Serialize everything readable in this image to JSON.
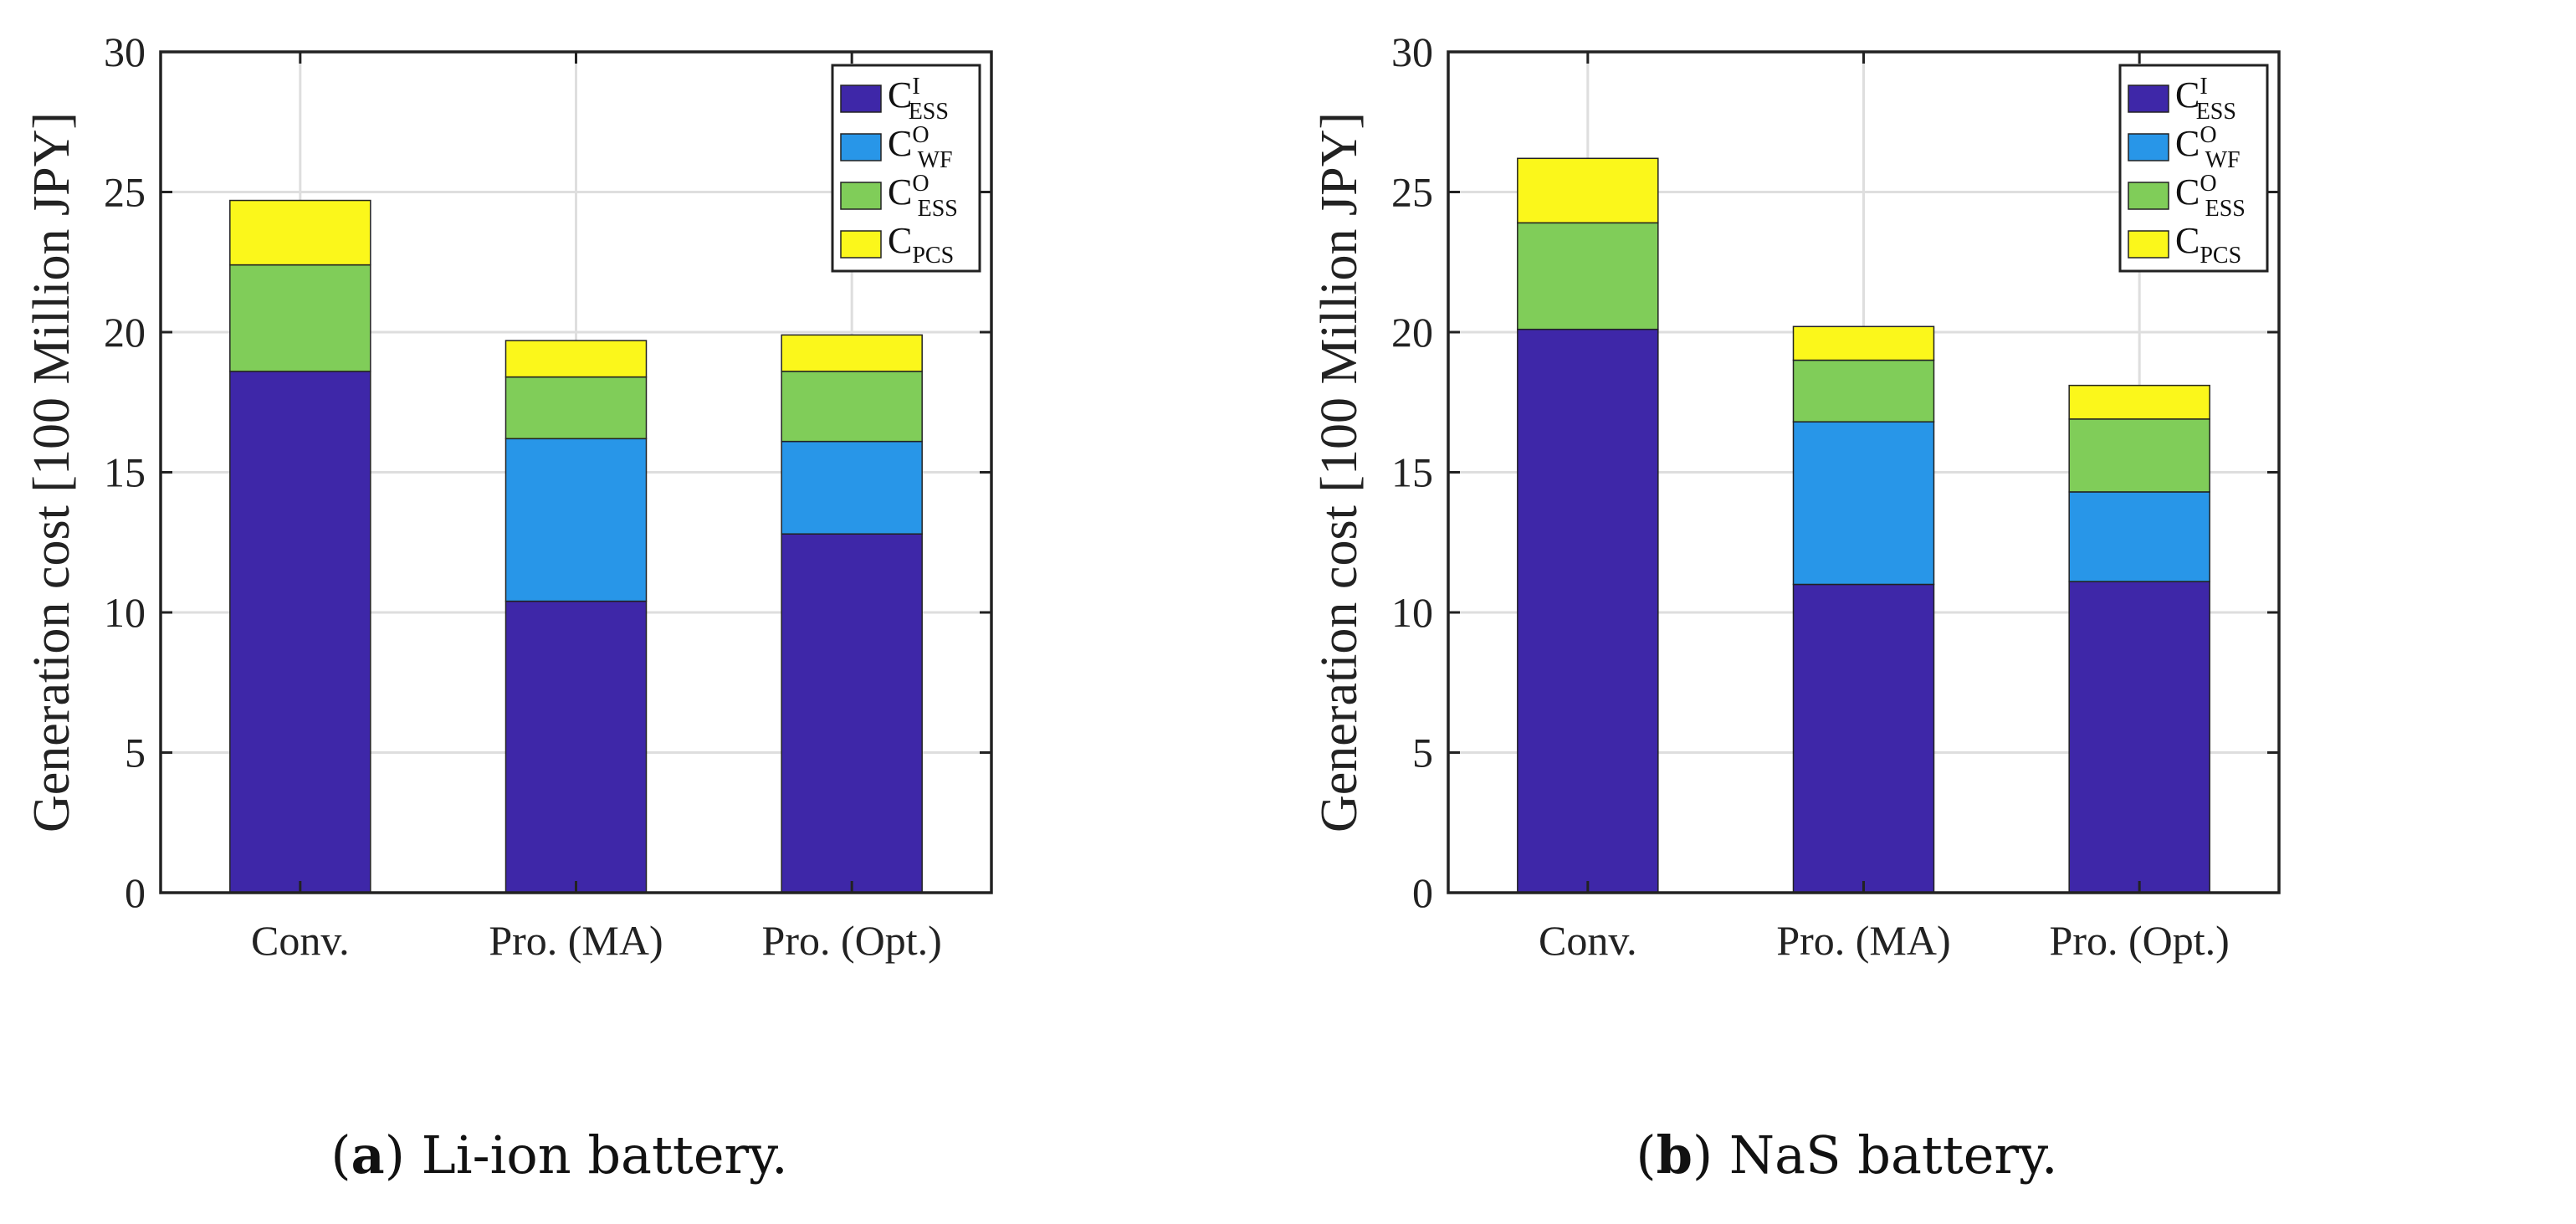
{
  "chart_data": [
    {
      "type": "bar",
      "stacked": true,
      "categories": [
        "Conv.",
        "Pro. (MA)",
        "Pro. (Opt.)"
      ],
      "series": [
        {
          "name": "C_ESS^I",
          "base": "C",
          "sup": "I",
          "sub": "ESS",
          "color": "#3e27a8",
          "values": [
            18.6,
            10.4,
            12.8
          ]
        },
        {
          "name": "C_WF^O",
          "base": "C",
          "sup": "O",
          "sub": "WF",
          "color": "#2896e8",
          "values": [
            0,
            5.8,
            3.3
          ]
        },
        {
          "name": "C_ESS^O",
          "base": "C",
          "sup": "O",
          "sub": "ESS",
          "color": "#80cd59",
          "values": [
            3.8,
            2.2,
            2.5
          ]
        },
        {
          "name": "C_PCS",
          "base": "C",
          "sup": "",
          "sub": "PCS",
          "color": "#fbf71b",
          "values": [
            2.3,
            1.3,
            1.3
          ]
        }
      ],
      "ylabel": "Generation cost [100 Million JPY]",
      "ylim": [
        0,
        30
      ],
      "yticks": [
        0,
        5,
        10,
        15,
        20,
        25,
        30
      ],
      "grid": true,
      "legend_position": "top-right",
      "caption": {
        "label": "a",
        "text": " Li-ion battery."
      }
    },
    {
      "type": "bar",
      "stacked": true,
      "categories": [
        "Conv.",
        "Pro. (MA)",
        "Pro. (Opt.)"
      ],
      "series": [
        {
          "name": "C_ESS^I",
          "base": "C",
          "sup": "I",
          "sub": "ESS",
          "color": "#3e27a8",
          "values": [
            20.1,
            11.0,
            11.1
          ]
        },
        {
          "name": "C_WF^O",
          "base": "C",
          "sup": "O",
          "sub": "WF",
          "color": "#2896e8",
          "values": [
            0,
            5.8,
            3.2
          ]
        },
        {
          "name": "C_ESS^O",
          "base": "C",
          "sup": "O",
          "sub": "ESS",
          "color": "#80cd59",
          "values": [
            3.8,
            2.2,
            2.6
          ]
        },
        {
          "name": "C_PCS",
          "base": "C",
          "sup": "",
          "sub": "PCS",
          "color": "#fbf71b",
          "values": [
            2.3,
            1.2,
            1.2
          ]
        }
      ],
      "ylabel": "Generation cost [100 Million JPY]",
      "ylim": [
        0,
        30
      ],
      "yticks": [
        0,
        5,
        10,
        15,
        20,
        25,
        30
      ],
      "grid": true,
      "legend_position": "top-right",
      "caption": {
        "label": "b",
        "text": " NaS battery."
      }
    }
  ]
}
